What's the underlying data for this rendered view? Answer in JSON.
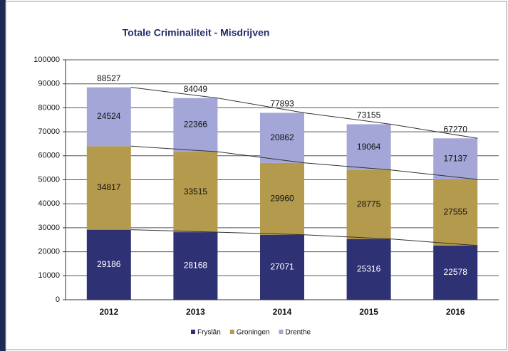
{
  "chart_data": {
    "type": "stacked_bar",
    "title": "Totale Criminaliteit - Misdrijven",
    "categories": [
      "2012",
      "2013",
      "2014",
      "2015",
      "2016"
    ],
    "series": [
      {
        "name": "Fryslân",
        "color": "#2f3175",
        "values": [
          29186,
          28168,
          27071,
          25316,
          22578
        ]
      },
      {
        "name": "Groningen",
        "color": "#b49a4c",
        "values": [
          34817,
          33515,
          29960,
          28775,
          27555
        ]
      },
      {
        "name": "Drenthe",
        "color": "#a3a6d6",
        "values": [
          24524,
          22366,
          20862,
          19064,
          17137
        ]
      }
    ],
    "totals": [
      88527,
      84049,
      77893,
      73155,
      67270
    ],
    "ylim": [
      0,
      100000
    ],
    "yticks": [
      0,
      10000,
      20000,
      30000,
      40000,
      50000,
      60000,
      70000,
      80000,
      90000,
      100000
    ],
    "grid": true,
    "legend": "bottom"
  }
}
